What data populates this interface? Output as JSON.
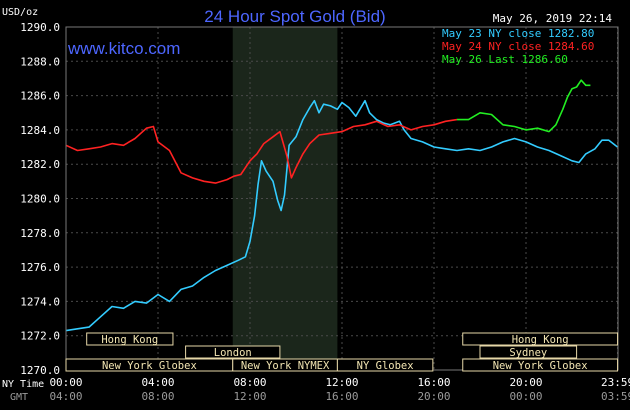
{
  "chart_data": {
    "type": "line",
    "title": "24 Hour Spot Gold (Bid)",
    "watermark": "www.kitco.com",
    "unit_label": "USD/oz",
    "timestamp": "May 26, 2019 22:14",
    "ylim": [
      1270.0,
      1290.0
    ],
    "y_ticks": [
      "1290.0",
      "1288.0",
      "1286.0",
      "1284.0",
      "1282.0",
      "1280.0",
      "1278.0",
      "1276.0",
      "1274.0",
      "1272.0",
      "1270.0"
    ],
    "xlim": [
      0,
      24
    ],
    "x_ticks_ny": [
      "00:00",
      "04:00",
      "08:00",
      "12:00",
      "16:00",
      "20:00",
      "23:59"
    ],
    "x_ticks_gmt": [
      "04:00",
      "08:00",
      "12:00",
      "16:00",
      "20:00",
      "00:00",
      "03:59"
    ],
    "x_tick_hours": [
      0,
      4,
      8,
      12,
      16,
      20,
      23.98
    ],
    "row_label_ny": "NY Time",
    "row_label_gmt": "GMT",
    "highlight_band_hours": [
      7.25,
      11.8
    ],
    "legend": [
      {
        "label": "May 23 NY close 1282.80",
        "color": "#33ccff"
      },
      {
        "label": "May 24 NY close 1284.60",
        "color": "#ff2222"
      },
      {
        "label": "May 26 Last 1286.60",
        "color": "#22ee22"
      }
    ],
    "sessions": [
      {
        "name": "Hong Kong",
        "start": 0.9,
        "end": 4.65,
        "row": 0
      },
      {
        "name": "Hong Kong",
        "start": 17.25,
        "end": 23.98,
        "row": 0
      },
      {
        "name": "London",
        "start": 5.2,
        "end": 9.3,
        "row": 1
      },
      {
        "name": "Sydney",
        "start": 18.0,
        "end": 22.2,
        "row": 1
      },
      {
        "name": "New York Globex",
        "start": 0.0,
        "end": 7.25,
        "row": 2
      },
      {
        "name": "New York NYMEX",
        "start": 7.25,
        "end": 11.8,
        "row": 2
      },
      {
        "name": "NY Globex",
        "start": 11.8,
        "end": 15.95,
        "row": 2
      },
      {
        "name": "New York Globex",
        "start": 17.25,
        "end": 23.98,
        "row": 2
      }
    ],
    "series": [
      {
        "color": "#33ccff",
        "points": [
          [
            0,
            1272.3
          ],
          [
            0.5,
            1272.4
          ],
          [
            1,
            1272.5
          ],
          [
            1.5,
            1273.1
          ],
          [
            2,
            1273.7
          ],
          [
            2.5,
            1273.6
          ],
          [
            3,
            1274.0
          ],
          [
            3.5,
            1273.9
          ],
          [
            4,
            1274.4
          ],
          [
            4.5,
            1274.0
          ],
          [
            5,
            1274.7
          ],
          [
            5.5,
            1274.9
          ],
          [
            6,
            1275.4
          ],
          [
            6.5,
            1275.8
          ],
          [
            7,
            1276.1
          ],
          [
            7.5,
            1276.4
          ],
          [
            7.8,
            1276.6
          ],
          [
            8,
            1277.5
          ],
          [
            8.2,
            1279.0
          ],
          [
            8.35,
            1280.8
          ],
          [
            8.5,
            1282.2
          ],
          [
            8.7,
            1281.6
          ],
          [
            9,
            1281.0
          ],
          [
            9.2,
            1279.9
          ],
          [
            9.35,
            1279.3
          ],
          [
            9.5,
            1280.2
          ],
          [
            9.7,
            1283.1
          ],
          [
            10,
            1283.6
          ],
          [
            10.3,
            1284.6
          ],
          [
            10.6,
            1285.3
          ],
          [
            10.8,
            1285.7
          ],
          [
            11,
            1285.0
          ],
          [
            11.2,
            1285.5
          ],
          [
            11.5,
            1285.4
          ],
          [
            11.8,
            1285.2
          ],
          [
            12,
            1285.6
          ],
          [
            12.3,
            1285.3
          ],
          [
            12.6,
            1284.8
          ],
          [
            13,
            1285.7
          ],
          [
            13.2,
            1285.0
          ],
          [
            13.5,
            1284.6
          ],
          [
            13.8,
            1284.4
          ],
          [
            14.1,
            1284.3
          ],
          [
            14.5,
            1284.5
          ],
          [
            14.7,
            1284.0
          ],
          [
            15,
            1283.5
          ],
          [
            15.5,
            1283.3
          ],
          [
            16,
            1283.0
          ],
          [
            16.5,
            1282.9
          ],
          [
            17,
            1282.8
          ],
          [
            17.5,
            1282.9
          ],
          [
            18,
            1282.8
          ],
          [
            18.5,
            1283.0
          ],
          [
            19,
            1283.3
          ],
          [
            19.5,
            1283.5
          ],
          [
            20,
            1283.3
          ],
          [
            20.5,
            1283.0
          ],
          [
            21,
            1282.8
          ],
          [
            21.5,
            1282.5
          ],
          [
            22,
            1282.2
          ],
          [
            22.3,
            1282.1
          ],
          [
            22.6,
            1282.6
          ],
          [
            23,
            1282.9
          ],
          [
            23.3,
            1283.4
          ],
          [
            23.6,
            1283.4
          ],
          [
            23.98,
            1283.0
          ]
        ]
      },
      {
        "color": "#ff2222",
        "points": [
          [
            0,
            1283.1
          ],
          [
            0.5,
            1282.8
          ],
          [
            1,
            1282.9
          ],
          [
            1.5,
            1283.0
          ],
          [
            2,
            1283.2
          ],
          [
            2.5,
            1283.1
          ],
          [
            3,
            1283.5
          ],
          [
            3.5,
            1284.1
          ],
          [
            3.8,
            1284.2
          ],
          [
            4,
            1283.3
          ],
          [
            4.5,
            1282.8
          ],
          [
            5,
            1281.5
          ],
          [
            5.5,
            1281.2
          ],
          [
            6,
            1281.0
          ],
          [
            6.5,
            1280.9
          ],
          [
            7,
            1281.1
          ],
          [
            7.3,
            1281.3
          ],
          [
            7.6,
            1281.4
          ],
          [
            8,
            1282.2
          ],
          [
            8.3,
            1282.6
          ],
          [
            8.6,
            1283.2
          ],
          [
            9,
            1283.6
          ],
          [
            9.3,
            1283.9
          ],
          [
            9.6,
            1282.5
          ],
          [
            9.8,
            1281.2
          ],
          [
            10,
            1281.8
          ],
          [
            10.3,
            1282.6
          ],
          [
            10.6,
            1283.2
          ],
          [
            11,
            1283.7
          ],
          [
            11.5,
            1283.8
          ],
          [
            12,
            1283.9
          ],
          [
            12.5,
            1284.2
          ],
          [
            13,
            1284.3
          ],
          [
            13.5,
            1284.5
          ],
          [
            14,
            1284.2
          ],
          [
            14.5,
            1284.3
          ],
          [
            15,
            1284.0
          ],
          [
            15.5,
            1284.2
          ],
          [
            16,
            1284.3
          ],
          [
            16.5,
            1284.5
          ],
          [
            17,
            1284.6
          ]
        ]
      },
      {
        "color": "#22ee22",
        "points": [
          [
            17,
            1284.6
          ],
          [
            17.5,
            1284.6
          ],
          [
            18,
            1285.0
          ],
          [
            18.5,
            1284.9
          ],
          [
            19,
            1284.3
          ],
          [
            19.5,
            1284.2
          ],
          [
            20,
            1284.0
          ],
          [
            20.5,
            1284.1
          ],
          [
            21,
            1283.9
          ],
          [
            21.3,
            1284.3
          ],
          [
            21.6,
            1285.2
          ],
          [
            21.8,
            1285.9
          ],
          [
            22,
            1286.4
          ],
          [
            22.2,
            1286.5
          ],
          [
            22.4,
            1286.9
          ],
          [
            22.6,
            1286.6
          ],
          [
            22.8,
            1286.6
          ]
        ]
      }
    ]
  }
}
